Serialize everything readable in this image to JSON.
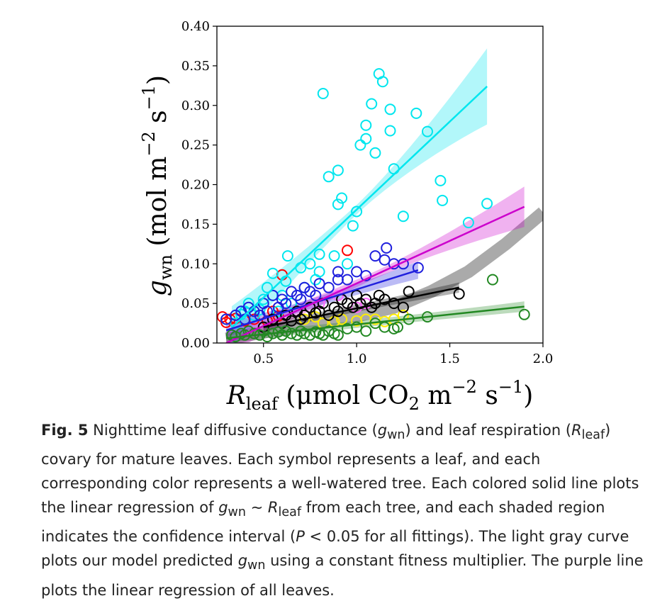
{
  "chart_data": {
    "type": "scatter",
    "xlim": [
      0.25,
      2.0
    ],
    "ylim": [
      0.0,
      0.4
    ],
    "xticks": [
      "0.5",
      "1.0",
      "1.5",
      "2.0"
    ],
    "yticks": [
      "0.00",
      "0.05",
      "0.10",
      "0.15",
      "0.20",
      "0.25",
      "0.30",
      "0.35",
      "0.40"
    ],
    "x_label_main": "R",
    "x_label_sub": "leaf",
    "x_label_units": " (μmol CO",
    "x_label_co2_sub": "2",
    "x_label_m": " m",
    "x_label_m_exp": "−2",
    "x_label_s": " s",
    "x_label_s_exp": "−1",
    "x_label_close": ")",
    "y_label_main": "g",
    "y_label_sub": "wn",
    "y_label_units": " (mol m",
    "y_label_m_exp": "−2",
    "y_label_s": " s",
    "y_label_s_exp": "−1",
    "y_label_close": ")",
    "grid": false,
    "series": [
      {
        "color": "#ff0000",
        "fit": null,
        "points": [
          [
            0.28,
            0.033
          ],
          [
            0.3,
            0.026
          ],
          [
            0.32,
            0.03
          ],
          [
            0.35,
            0.031
          ],
          [
            0.4,
            0.028
          ],
          [
            0.45,
            0.03
          ],
          [
            0.52,
            0.028
          ],
          [
            0.55,
            0.04
          ],
          [
            0.58,
            0.034
          ],
          [
            0.6,
            0.086
          ],
          [
            0.95,
            0.117
          ]
        ]
      },
      {
        "color": "#ffee00",
        "fit": null,
        "points": [
          [
            0.72,
            0.03
          ],
          [
            0.78,
            0.033
          ],
          [
            0.82,
            0.025
          ],
          [
            0.88,
            0.027
          ],
          [
            0.92,
            0.03
          ],
          [
            1.0,
            0.028
          ],
          [
            1.05,
            0.03
          ],
          [
            1.1,
            0.03
          ],
          [
            1.15,
            0.027
          ],
          [
            1.2,
            0.03
          ],
          [
            1.25,
            0.035
          ]
        ]
      },
      {
        "color": "#00e6ee",
        "fit": {
          "x": [
            0.33,
            1.7
          ],
          "y": [
            0.0195,
            0.324
          ],
          "ci": [
            0.004,
            0.046
          ]
        },
        "points": [
          [
            0.3,
            0.03
          ],
          [
            0.35,
            0.025
          ],
          [
            0.38,
            0.036
          ],
          [
            0.4,
            0.04
          ],
          [
            0.42,
            0.05
          ],
          [
            0.45,
            0.035
          ],
          [
            0.48,
            0.042
          ],
          [
            0.5,
            0.055
          ],
          [
            0.52,
            0.07
          ],
          [
            0.55,
            0.06
          ],
          [
            0.55,
            0.088
          ],
          [
            0.58,
            0.04
          ],
          [
            0.6,
            0.06
          ],
          [
            0.62,
            0.078
          ],
          [
            0.63,
            0.11
          ],
          [
            0.65,
            0.05
          ],
          [
            0.68,
            0.06
          ],
          [
            0.7,
            0.095
          ],
          [
            0.72,
            0.07
          ],
          [
            0.75,
            0.1
          ],
          [
            0.78,
            0.08
          ],
          [
            0.8,
            0.09
          ],
          [
            0.8,
            0.112
          ],
          [
            0.82,
            0.315
          ],
          [
            0.85,
            0.21
          ],
          [
            0.88,
            0.11
          ],
          [
            0.9,
            0.175
          ],
          [
            0.9,
            0.218
          ],
          [
            0.92,
            0.183
          ],
          [
            0.95,
            0.1
          ],
          [
            0.98,
            0.148
          ],
          [
            1.0,
            0.166
          ],
          [
            1.02,
            0.25
          ],
          [
            1.05,
            0.275
          ],
          [
            1.05,
            0.258
          ],
          [
            1.08,
            0.302
          ],
          [
            1.1,
            0.24
          ],
          [
            1.12,
            0.34
          ],
          [
            1.14,
            0.33
          ],
          [
            1.18,
            0.295
          ],
          [
            1.18,
            0.268
          ],
          [
            1.2,
            0.22
          ],
          [
            1.25,
            0.16
          ],
          [
            1.32,
            0.29
          ],
          [
            1.38,
            0.267
          ],
          [
            1.45,
            0.205
          ],
          [
            1.46,
            0.18
          ],
          [
            1.6,
            0.152
          ],
          [
            1.7,
            0.176
          ]
        ]
      },
      {
        "color": "#ff66ff",
        "fit": null,
        "points": [
          [
            0.72,
            0.035
          ],
          [
            0.8,
            0.05
          ],
          [
            0.9,
            0.06
          ],
          [
            0.95,
            0.05
          ],
          [
            1.0,
            0.045
          ],
          [
            1.05,
            0.05
          ]
        ]
      },
      {
        "color": "#1f1fdd",
        "fit": {
          "x": [
            0.3,
            1.33
          ],
          "y": [
            0.016,
            0.092
          ],
          "ci": [
            0.004,
            0.009
          ]
        },
        "points": [
          [
            0.3,
            0.03
          ],
          [
            0.35,
            0.035
          ],
          [
            0.38,
            0.04
          ],
          [
            0.4,
            0.03
          ],
          [
            0.42,
            0.045
          ],
          [
            0.45,
            0.04
          ],
          [
            0.48,
            0.035
          ],
          [
            0.5,
            0.05
          ],
          [
            0.52,
            0.04
          ],
          [
            0.55,
            0.06
          ],
          [
            0.58,
            0.045
          ],
          [
            0.6,
            0.055
          ],
          [
            0.62,
            0.05
          ],
          [
            0.65,
            0.065
          ],
          [
            0.68,
            0.06
          ],
          [
            0.7,
            0.055
          ],
          [
            0.72,
            0.07
          ],
          [
            0.75,
            0.065
          ],
          [
            0.78,
            0.06
          ],
          [
            0.8,
            0.075
          ],
          [
            0.85,
            0.07
          ],
          [
            0.9,
            0.08
          ],
          [
            0.9,
            0.09
          ],
          [
            0.95,
            0.08
          ],
          [
            1.0,
            0.09
          ],
          [
            1.05,
            0.085
          ],
          [
            1.1,
            0.11
          ],
          [
            1.15,
            0.105
          ],
          [
            1.16,
            0.12
          ],
          [
            1.2,
            0.1
          ],
          [
            1.25,
            0.1
          ],
          [
            1.33,
            0.095
          ]
        ]
      },
      {
        "color": "#cc00cc",
        "fit": {
          "x": [
            0.3,
            1.9
          ],
          "y": [
            0.0,
            0.172
          ],
          "ci": [
            0.003,
            0.024
          ]
        },
        "points": []
      },
      {
        "color": "#000000",
        "fit": {
          "x": [
            0.5,
            1.55
          ],
          "y": [
            0.02,
            0.07
          ],
          "ci": [
            0.003,
            0.005
          ]
        },
        "points": [
          [
            0.5,
            0.02
          ],
          [
            0.55,
            0.03
          ],
          [
            0.6,
            0.025
          ],
          [
            0.62,
            0.035
          ],
          [
            0.65,
            0.028
          ],
          [
            0.68,
            0.04
          ],
          [
            0.7,
            0.03
          ],
          [
            0.72,
            0.035
          ],
          [
            0.75,
            0.045
          ],
          [
            0.78,
            0.038
          ],
          [
            0.8,
            0.04
          ],
          [
            0.82,
            0.05
          ],
          [
            0.85,
            0.035
          ],
          [
            0.88,
            0.045
          ],
          [
            0.9,
            0.04
          ],
          [
            0.92,
            0.055
          ],
          [
            0.95,
            0.05
          ],
          [
            0.98,
            0.045
          ],
          [
            1.0,
            0.06
          ],
          [
            1.02,
            0.05
          ],
          [
            1.05,
            0.055
          ],
          [
            1.08,
            0.045
          ],
          [
            1.1,
            0.05
          ],
          [
            1.12,
            0.06
          ],
          [
            1.15,
            0.055
          ],
          [
            1.2,
            0.05
          ],
          [
            1.25,
            0.045
          ],
          [
            1.28,
            0.065
          ],
          [
            1.55,
            0.062
          ]
        ]
      },
      {
        "color": "#228822",
        "fit": {
          "x": [
            0.3,
            1.9
          ],
          "y": [
            0.006,
            0.046
          ],
          "ci": [
            0.003,
            0.005
          ]
        },
        "points": [
          [
            0.33,
            0.01
          ],
          [
            0.35,
            0.008
          ],
          [
            0.38,
            0.012
          ],
          [
            0.4,
            0.01
          ],
          [
            0.42,
            0.015
          ],
          [
            0.45,
            0.012
          ],
          [
            0.48,
            0.01
          ],
          [
            0.5,
            0.015
          ],
          [
            0.52,
            0.008
          ],
          [
            0.55,
            0.012
          ],
          [
            0.58,
            0.014
          ],
          [
            0.6,
            0.01
          ],
          [
            0.62,
            0.015
          ],
          [
            0.65,
            0.012
          ],
          [
            0.68,
            0.01
          ],
          [
            0.7,
            0.015
          ],
          [
            0.72,
            0.012
          ],
          [
            0.75,
            0.01
          ],
          [
            0.78,
            0.014
          ],
          [
            0.8,
            0.012
          ],
          [
            0.82,
            0.01
          ],
          [
            0.85,
            0.015
          ],
          [
            0.88,
            0.012
          ],
          [
            0.9,
            0.01
          ],
          [
            0.95,
            0.018
          ],
          [
            1.0,
            0.02
          ],
          [
            1.05,
            0.015
          ],
          [
            1.1,
            0.025
          ],
          [
            1.15,
            0.02
          ],
          [
            1.2,
            0.018
          ],
          [
            1.22,
            0.02
          ],
          [
            1.28,
            0.03
          ],
          [
            1.38,
            0.033
          ],
          [
            1.73,
            0.08
          ],
          [
            1.9,
            0.036
          ]
        ]
      }
    ],
    "model_curve": {
      "color": "#aaaaaa",
      "x": [
        0.3,
        0.7,
        1.0,
        1.2,
        1.4,
        1.6,
        1.8,
        2.0
      ],
      "y": [
        0.005,
        0.022,
        0.034,
        0.045,
        0.065,
        0.09,
        0.125,
        0.165
      ]
    }
  },
  "caption": {
    "fig_label": "Fig. 5",
    "t1": " Nighttime leaf diffusive conductance (",
    "g": "g",
    "wn": "wn",
    "t2": ") and leaf respiration (",
    "R": "R",
    "leaf": "leaf",
    "t3": ") covary for mature leaves. Each symbol represents a leaf, and each corresponding color represents a well-watered tree. Each colored solid line plots the linear regression of ",
    "g2": "g",
    "wn2": "wn",
    "sim": " ∼ ",
    "R2": "R",
    "leaf2": "leaf",
    "t4": " from each tree, and each shaded region indicates the confidence interval (",
    "P": "P",
    "t5": " < 0.05 for all fittings). The light gray curve plots our model predicted ",
    "g3": "g",
    "wn3": "wn",
    "t6": " using a constant fitness multiplier. The purple line plots the linear regression of all leaves."
  }
}
